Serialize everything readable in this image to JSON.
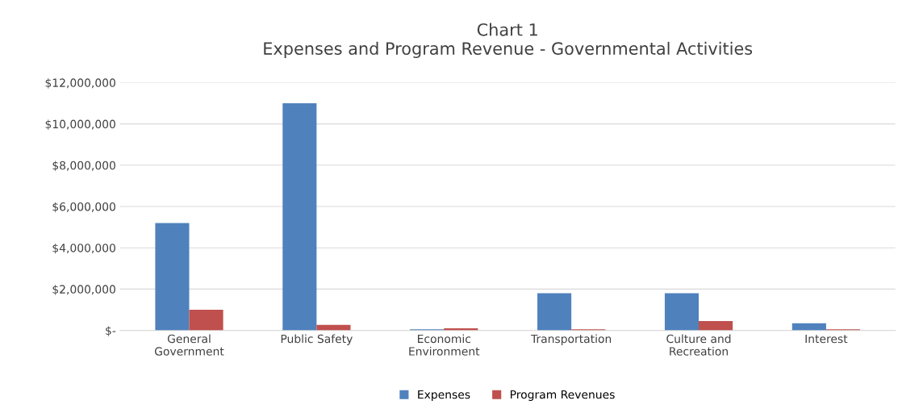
{
  "chart_data": {
    "type": "bar",
    "title": "Chart 1\nExpenses and Program Revenue - Governmental Activities",
    "categories": [
      "General\nGovernment",
      "Public Safety",
      "Economic\nEnvironment",
      "Transportation",
      "Culture and\nRecreation",
      "Interest"
    ],
    "series": [
      {
        "name": "Expenses",
        "color": "#4f81bd",
        "values": [
          5200000,
          11000000,
          50000,
          1800000,
          1800000,
          350000
        ]
      },
      {
        "name": "Program Revenues",
        "color": "#c0504d",
        "values": [
          1000000,
          270000,
          100000,
          50000,
          450000,
          50000
        ]
      }
    ],
    "ylim": [
      0,
      12000000
    ],
    "yticks": [
      {
        "value": 0,
        "label": "$-"
      },
      {
        "value": 2000000,
        "label": "$2,000,000"
      },
      {
        "value": 4000000,
        "label": "$4,000,000"
      },
      {
        "value": 6000000,
        "label": "$6,000,000"
      },
      {
        "value": 8000000,
        "label": "$8,000,000"
      },
      {
        "value": 10000000,
        "label": "$10,000,000"
      },
      {
        "value": 12000000,
        "label": "$12,000,000"
      }
    ],
    "grid": "y",
    "legend": "bottom"
  }
}
